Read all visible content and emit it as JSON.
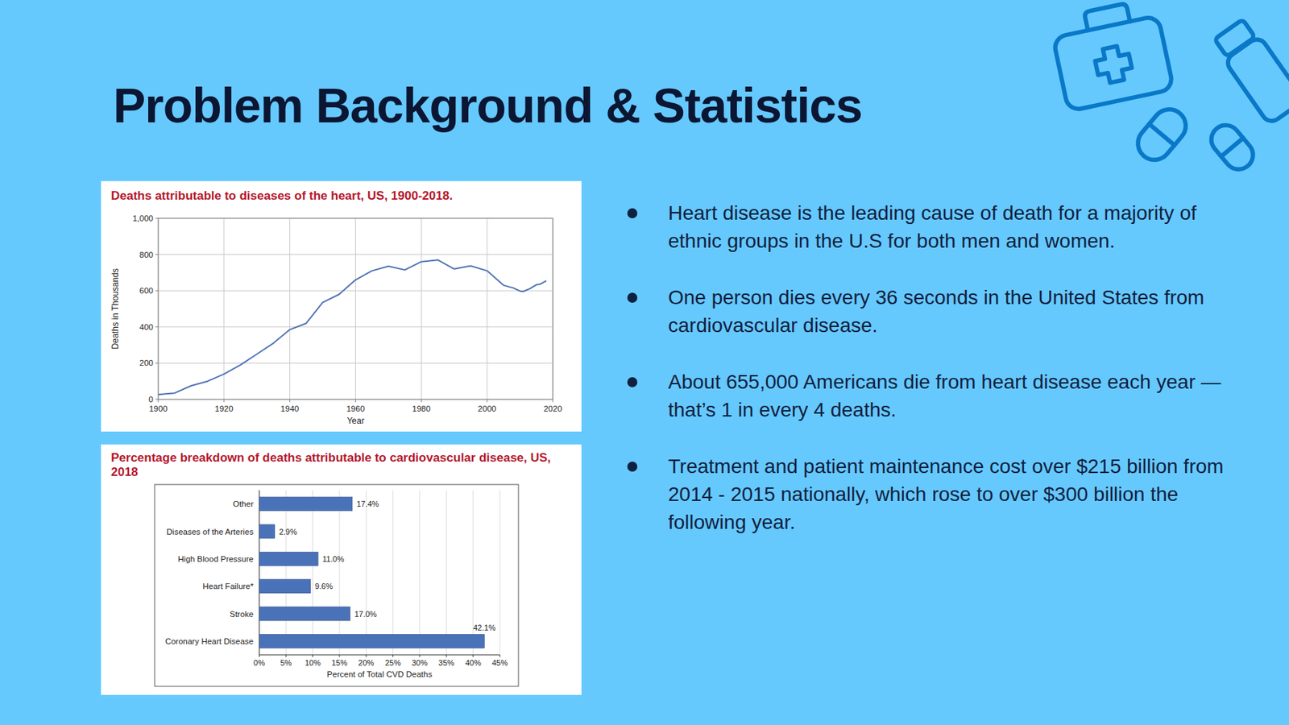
{
  "slide": {
    "title": "Problem Background & Statistics",
    "bullets": [
      "Heart disease is the leading cause of death for a majority of ethnic groups in the U.S for both men and women.",
      "One person dies every 36 seconds in the United States from cardiovascular disease.",
      "About 655,000 Americans die from heart disease each year — that’s 1 in every 4 deaths.",
      "Treatment and patient maintenance cost over $215 billion from 2014 - 2015 nationally, which rose to over $300 billion the following year."
    ]
  },
  "chart_data": [
    {
      "type": "line",
      "title": "Deaths attributable to diseases of the heart, US, 1900-2018.",
      "x": [
        1900,
        1905,
        1910,
        1915,
        1920,
        1925,
        1930,
        1935,
        1940,
        1945,
        1950,
        1955,
        1960,
        1965,
        1970,
        1975,
        1980,
        1985,
        1990,
        1995,
        2000,
        2005,
        2008,
        2010,
        2011,
        2013,
        2015,
        2016,
        2018
      ],
      "values": [
        27,
        35,
        75,
        100,
        140,
        190,
        250,
        310,
        385,
        420,
        535,
        580,
        660,
        710,
        735,
        715,
        760,
        770,
        720,
        737,
        710,
        630,
        615,
        598,
        596,
        611,
        633,
        635,
        655
      ],
      "color": "#4f74b3",
      "xlim": [
        1900,
        2020
      ],
      "xticks": [
        1900,
        1920,
        1940,
        1960,
        1980,
        2000,
        2020
      ],
      "ylim": [
        0,
        1000
      ],
      "yticks": [
        0,
        200,
        400,
        600,
        800,
        {
          "value": 1000,
          "label": "1,000"
        }
      ],
      "xlabel": "Year",
      "ylabel": "Deaths in Thousands",
      "grid": true
    },
    {
      "type": "bar",
      "orientation": "horizontal",
      "title": "Percentage breakdown of deaths attributable to cardiovascular disease, US, 2018",
      "categories": [
        "Other",
        "Diseases of the Arteries",
        "High Blood Pressure",
        "Heart Failure*",
        "Stroke",
        "Coronary Heart Disease"
      ],
      "values": [
        17.4,
        2.9,
        11.0,
        9.6,
        17.0,
        42.1
      ],
      "value_labels": [
        "17.4%",
        "2.9%",
        "11.0%",
        "9.6%",
        "17.0%",
        "42.1%"
      ],
      "data_labels": true,
      "color": "#4a72b8",
      "xlim": [
        0,
        45
      ],
      "xticks": [
        {
          "value": 0,
          "label": "0%"
        },
        {
          "value": 5,
          "label": "5%"
        },
        {
          "value": 10,
          "label": "10%"
        },
        {
          "value": 15,
          "label": "15%"
        },
        {
          "value": 20,
          "label": "20%"
        },
        {
          "value": 25,
          "label": "25%"
        },
        {
          "value": 30,
          "label": "30%"
        },
        {
          "value": 35,
          "label": "35%"
        },
        {
          "value": 40,
          "label": "40%"
        },
        {
          "value": 45,
          "label": "45%"
        }
      ],
      "xlabel": "Percent of Total CVD Deaths",
      "grid": true
    }
  ]
}
